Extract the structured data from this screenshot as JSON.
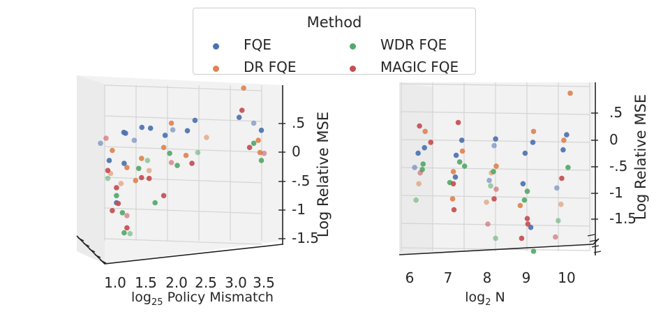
{
  "legend": {
    "title": "Method",
    "items": [
      {
        "label": "FQE",
        "color": "#4c72b0"
      },
      {
        "label": "DR FQE",
        "color": "#dd8452"
      },
      {
        "label": "WDR FQE",
        "color": "#55a868"
      },
      {
        "label": "MAGIC FQE",
        "color": "#c44e52"
      }
    ]
  },
  "chart_data": [
    {
      "type": "scatter",
      "projection": "3d",
      "xlabel_main": "log",
      "xlabel_sub": "25",
      "xlabel_rest": " Policy Mismatch",
      "zlabel": "Log Relative MSE",
      "x_ticks": [
        "1.0",
        "1.5",
        "2.0",
        "2.5",
        "3.0",
        "3.5"
      ],
      "z_ticks": [
        ".5",
        "0",
        "-.5",
        "-1",
        "-1.5"
      ],
      "zlim": [
        -1.8,
        1.3
      ],
      "grid": true,
      "series": [
        {
          "name": "FQE",
          "color": "#4c72b0",
          "x": [
            0.9,
            1.0,
            1.2,
            1.3,
            1.4,
            1.6,
            1.7,
            1.9,
            2.1,
            2.3,
            2.5,
            3.2,
            3.4,
            3.6,
            1.1,
            1.3
          ],
          "z": [
            0.1,
            -0.2,
            0.4,
            0.3,
            0.2,
            0.5,
            0.4,
            0.3,
            0.45,
            0.35,
            0.6,
            0.7,
            0.5,
            0.4,
            -1.0,
            -0.3
          ]
        },
        {
          "name": "DR FQE",
          "color": "#dd8452",
          "x": [
            1.0,
            1.1,
            1.3,
            1.5,
            1.7,
            1.9,
            2.1,
            2.3,
            2.6,
            3.3,
            3.5,
            3.6,
            1.2,
            1.4
          ],
          "z": [
            -0.5,
            0.0,
            -0.3,
            -0.2,
            -0.4,
            0.1,
            0.5,
            -0.1,
            0.3,
            1.2,
            0.2,
            0.0,
            -0.7,
            -0.6
          ]
        },
        {
          "name": "WDR FQE",
          "color": "#55a868",
          "x": [
            1.0,
            1.1,
            1.3,
            1.5,
            1.6,
            1.8,
            2.0,
            2.2,
            2.5,
            3.4,
            3.6,
            1.2,
            1.4
          ],
          "z": [
            -0.6,
            -0.9,
            -1.6,
            -0.4,
            -0.2,
            -1.0,
            -0.1,
            -0.3,
            0.0,
            0.1,
            -0.2,
            -1.2,
            -1.7
          ]
        },
        {
          "name": "MAGIC FQE",
          "color": "#c44e52",
          "x": [
            0.9,
            1.0,
            1.1,
            1.2,
            1.3,
            1.5,
            1.7,
            1.9,
            2.1,
            2.4,
            3.2,
            3.4,
            3.6,
            1.1,
            1.3
          ],
          "z": [
            0.2,
            -0.4,
            -0.7,
            -1.1,
            -1.3,
            -0.5,
            -0.6,
            -0.9,
            -0.2,
            -0.3,
            0.8,
            0.1,
            -0.1,
            -1.2,
            -1.5
          ]
        }
      ]
    },
    {
      "type": "scatter",
      "projection": "3d",
      "xlabel_main": "log",
      "xlabel_sub": "2",
      "xlabel_rest": " N",
      "zlabel": "Log Relative MSE",
      "x_ticks": [
        "6",
        "7",
        "8",
        "9",
        "10"
      ],
      "z_ticks": [
        ".5",
        "0",
        "-.5",
        "-1",
        "-1.5"
      ],
      "zlim": [
        -1.8,
        1.3
      ],
      "grid": true,
      "series": [
        {
          "name": "FQE",
          "color": "#4c72b0",
          "x": [
            6,
            6.2,
            7,
            7.3,
            8,
            8.3,
            9,
            9.2,
            10,
            10.2,
            6.1,
            7.1,
            8.1,
            9.1,
            10.1,
            9.3
          ],
          "z": [
            -0.3,
            0.1,
            -0.4,
            0.2,
            -0.5,
            0.3,
            -0.6,
            0.2,
            -0.6,
            0.3,
            0.0,
            0.0,
            0.1,
            0.0,
            0.1,
            -1.4
          ]
        },
        {
          "name": "DR FQE",
          "color": "#dd8452",
          "x": [
            6,
            6.3,
            7,
            7.2,
            8,
            8.2,
            9,
            9.3,
            10,
            10.2,
            10.3,
            7.1,
            8.1
          ],
          "z": [
            -0.6,
            0.4,
            -0.8,
            0.0,
            -0.9,
            -0.2,
            -1.0,
            0.4,
            -0.9,
            0.2,
            1.1,
            -0.3,
            -0.4
          ]
        },
        {
          "name": "WDR FQE",
          "color": "#55a868",
          "x": [
            6,
            6.1,
            7,
            7.2,
            8,
            8.2,
            9,
            9.2,
            10,
            10.2,
            6.2,
            7.3,
            8.3,
            9.3
          ],
          "z": [
            -0.9,
            -0.3,
            -0.5,
            -0.2,
            -0.6,
            -0.3,
            -0.9,
            -0.7,
            -1.2,
            -0.3,
            -0.2,
            -0.2,
            -1.6,
            -1.8
          ]
        },
        {
          "name": "MAGIC FQE",
          "color": "#c44e52",
          "x": [
            6,
            6.1,
            7,
            7.1,
            8,
            8.1,
            9,
            9.1,
            10,
            10.1,
            6.3,
            7.2,
            8.2,
            9.2
          ],
          "z": [
            -0.4,
            0.5,
            -1.0,
            -0.6,
            -1.3,
            -0.8,
            -1.6,
            -1.3,
            -1.5,
            -0.5,
            0.2,
            0.6,
            -0.7,
            -1.2
          ]
        }
      ]
    }
  ]
}
